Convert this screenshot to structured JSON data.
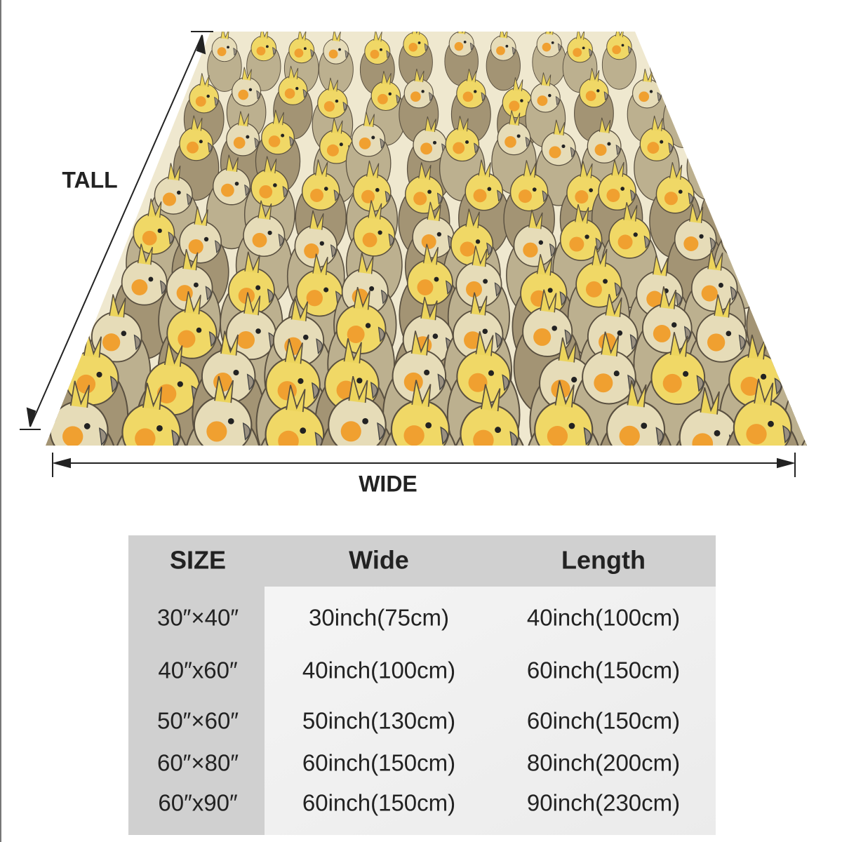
{
  "diagram": {
    "height_label": "TALL",
    "width_label": "WIDE"
  },
  "table": {
    "header": [
      "SIZE",
      "Wide",
      "Length"
    ],
    "rows": [
      [
        "30″×40″",
        "30inch(75cm)",
        "40inch(100cm)"
      ],
      [
        "40″x60″",
        "40inch(100cm)",
        "60inch(150cm)"
      ],
      [
        "50″×60″",
        "50inch(130cm)",
        "60inch(150cm)"
      ],
      [
        "60″×80″",
        "60inch(150cm)",
        "80inch(200cm)"
      ],
      [
        "60″x90″",
        "60inch(150cm)",
        "90inch(230cm)"
      ]
    ]
  }
}
